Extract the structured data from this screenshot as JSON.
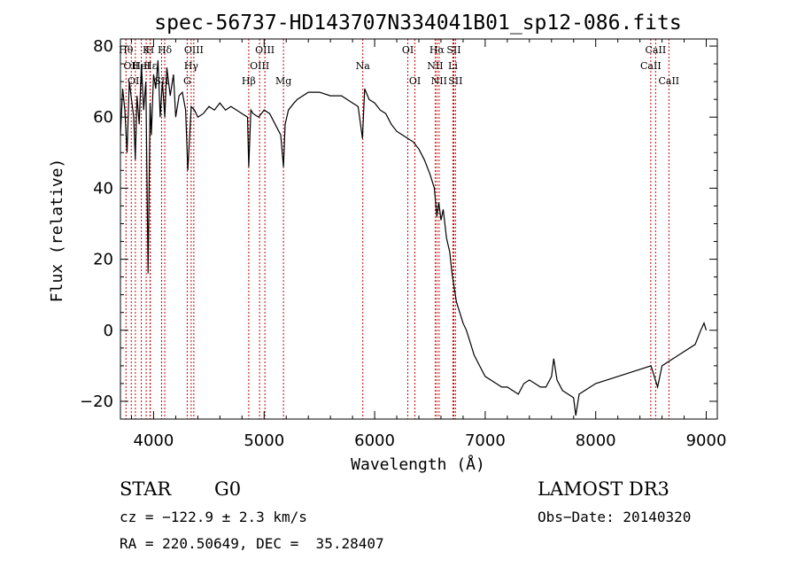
{
  "chart_data": {
    "type": "line",
    "title": "spec-56737-HD143707N334041B01_sp12-086.fits",
    "xlabel": "Wavelength (Å)",
    "ylabel": "Flux (relative)",
    "xlim": [
      3700,
      9100
    ],
    "ylim": [
      -25,
      82
    ],
    "xticks": [
      4000,
      5000,
      6000,
      7000,
      8000,
      9000
    ],
    "yticks": [
      -20,
      0,
      20,
      40,
      60,
      80
    ],
    "x_tick_labels": [
      "4000",
      "5000",
      "6000",
      "7000",
      "8000",
      "9000"
    ],
    "y_tick_labels": [
      "−20",
      "0",
      "20",
      "40",
      "60",
      "80"
    ],
    "series": [
      {
        "name": "spectrum",
        "color": "#000000",
        "x": [
          3700,
          3720,
          3740,
          3760,
          3780,
          3800,
          3820,
          3835,
          3850,
          3870,
          3890,
          3910,
          3930,
          3950,
          3968,
          3980,
          4000,
          4020,
          4040,
          4060,
          4080,
          4101,
          4120,
          4150,
          4180,
          4200,
          4230,
          4260,
          4290,
          4310,
          4340,
          4370,
          4400,
          4450,
          4500,
          4550,
          4600,
          4650,
          4700,
          4750,
          4800,
          4850,
          4861,
          4880,
          4900,
          4950,
          5000,
          5050,
          5100,
          5150,
          5175,
          5190,
          5220,
          5270,
          5300,
          5400,
          5500,
          5600,
          5700,
          5800,
          5850,
          5890,
          5910,
          5950,
          6000,
          6050,
          6100,
          6150,
          6200,
          6250,
          6300,
          6350,
          6400,
          6450,
          6500,
          6540,
          6563,
          6580,
          6600,
          6620,
          6650,
          6680,
          6700,
          6720,
          6740,
          6760,
          6800,
          6830,
          6870,
          6900,
          6950,
          7000,
          7050,
          7100,
          7150,
          7200,
          7250,
          7300,
          7350,
          7400,
          7450,
          7500,
          7550,
          7600,
          7620,
          7650,
          7700,
          7750,
          7800,
          7820,
          7850,
          7900,
          8000,
          8100,
          8200,
          8300,
          8400,
          8500,
          8540,
          8560,
          8600,
          8700,
          8800,
          8900,
          8950,
          8980,
          9000
        ],
        "values": [
          55,
          68,
          62,
          50,
          70,
          65,
          60,
          48,
          66,
          58,
          75,
          62,
          70,
          16,
          64,
          55,
          72,
          68,
          76,
          60,
          70,
          60,
          74,
          66,
          72,
          60,
          66,
          67,
          62,
          45,
          63,
          62,
          60,
          61,
          63,
          62,
          64,
          62,
          63,
          62,
          61,
          60,
          46,
          62,
          61,
          60,
          62,
          61,
          58,
          55,
          46,
          58,
          62,
          64,
          65,
          67,
          67,
          66,
          66,
          64,
          63,
          54,
          68,
          65,
          64,
          62,
          61,
          58,
          56,
          55,
          54,
          53,
          51,
          48,
          44,
          40,
          32,
          36,
          31,
          34,
          26,
          22,
          16,
          12,
          8,
          6,
          2,
          0,
          -4,
          -7,
          -10,
          -13,
          -14,
          -15,
          -16,
          -16,
          -17,
          -18,
          -15,
          -14,
          -15,
          -16,
          -16,
          -13,
          -8,
          -14,
          -17,
          -18,
          -19,
          -24,
          -18,
          -17,
          -15,
          -14,
          -13,
          -12,
          -11,
          -10,
          -14,
          -16,
          -10,
          -8,
          -6,
          -4,
          0,
          2,
          0
        ]
      }
    ],
    "lines": [
      {
        "w": 3750,
        "l": "Hθ",
        "r": 0
      },
      {
        "w": 3798,
        "l": "OII",
        "r": 1
      },
      {
        "w": 3835,
        "l": "OII",
        "r": 2
      },
      {
        "w": 3889,
        "l": "HeI",
        "r": 1
      },
      {
        "w": 3933,
        "l": "K",
        "r": 0
      },
      {
        "w": 3968,
        "l": "H",
        "r": 0
      },
      {
        "w": 3970,
        "l": "Hε",
        "r": 1
      },
      {
        "w": 4072,
        "l": "SII",
        "r": 2
      },
      {
        "w": 4101,
        "l": "Hδ",
        "r": 0
      },
      {
        "w": 4304,
        "l": "G",
        "r": 2
      },
      {
        "w": 4340,
        "l": "Hγ",
        "r": 1
      },
      {
        "w": 4364,
        "l": "OIII",
        "r": 0
      },
      {
        "w": 4861,
        "l": "Hβ",
        "r": 2
      },
      {
        "w": 4959,
        "l": "OIII",
        "r": 1
      },
      {
        "w": 5007,
        "l": "OIII",
        "r": 0
      },
      {
        "w": 5175,
        "l": "Mg",
        "r": 2
      },
      {
        "w": 5893,
        "l": "Na",
        "r": 1
      },
      {
        "w": 6300,
        "l": "OI",
        "r": 0
      },
      {
        "w": 6364,
        "l": "OI",
        "r": 2
      },
      {
        "w": 6548,
        "l": "NII",
        "r": 1
      },
      {
        "w": 6563,
        "l": "Hα",
        "r": 0
      },
      {
        "w": 6583,
        "l": "NII",
        "r": 2
      },
      {
        "w": 6708,
        "l": "Li",
        "r": 1
      },
      {
        "w": 6716,
        "l": "SII",
        "r": 0
      },
      {
        "w": 6731,
        "l": "SII",
        "r": 2
      },
      {
        "w": 8498,
        "l": "CaII",
        "r": 1
      },
      {
        "w": 8542,
        "l": "CaII",
        "r": 0
      },
      {
        "w": 8662,
        "l": "CaII",
        "r": 2
      }
    ]
  },
  "footer": {
    "object_class": "STAR",
    "subclass": "G0",
    "survey": "LAMOST DR3",
    "cz": "cz = −122.9 ± 2.3 km/s",
    "obs_date": "Obs−Date: 20140320",
    "radec": "RA = 220.50649, DEC =  35.28407"
  }
}
